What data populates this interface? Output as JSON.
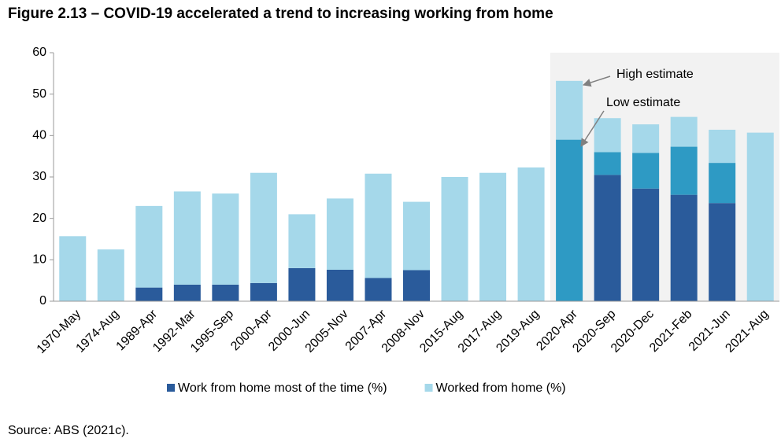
{
  "chart_data": {
    "type": "stacked_bar",
    "title": "Figure 2.13 – COVID-19 accelerated a trend to increasing working from home",
    "categories": [
      "1970-May",
      "1974-Aug",
      "1989-Apr",
      "1992-Mar",
      "1995-Sep",
      "2000-Apr",
      "2000-Jun",
      "2005-Nov",
      "2007-Apr",
      "2008-Nov",
      "2015-Aug",
      "2017-Aug",
      "2019-Aug",
      "2020-Apr",
      "2020-Sep",
      "2020-Dec",
      "2021-Feb",
      "2021-Jun",
      "2021-Aug"
    ],
    "series": [
      {
        "name": "Work from home most of the time (%)",
        "color": "#2a5b9b",
        "values": [
          null,
          null,
          3.3,
          4,
          4,
          4.4,
          8,
          7.6,
          5.6,
          7.5,
          null,
          null,
          null,
          null,
          30.5,
          27.2,
          25.7,
          23.7,
          null
        ]
      },
      {
        "color": "#2e9ac4",
        "values": [
          null,
          null,
          null,
          null,
          null,
          null,
          null,
          null,
          null,
          null,
          null,
          null,
          null,
          39,
          5.5,
          8.6,
          11.6,
          9.7,
          null
        ]
      },
      {
        "name": "Worked from home (%)",
        "color": "#a5d8ea",
        "values": [
          15.7,
          12.5,
          19.7,
          22.5,
          22,
          26.6,
          13,
          17.2,
          25.2,
          16.5,
          30,
          31,
          32.3,
          14.2,
          8.2,
          6.9,
          7.2,
          8,
          40.7
        ]
      }
    ],
    "ylim": [
      0,
      60
    ],
    "yticks": [
      0,
      10,
      20,
      30,
      40,
      50,
      60
    ],
    "annotations": [
      "High estimate",
      "Low estimate"
    ],
    "shading_color": "#f2f2f2",
    "source": "Source: ABS (2021c)."
  }
}
